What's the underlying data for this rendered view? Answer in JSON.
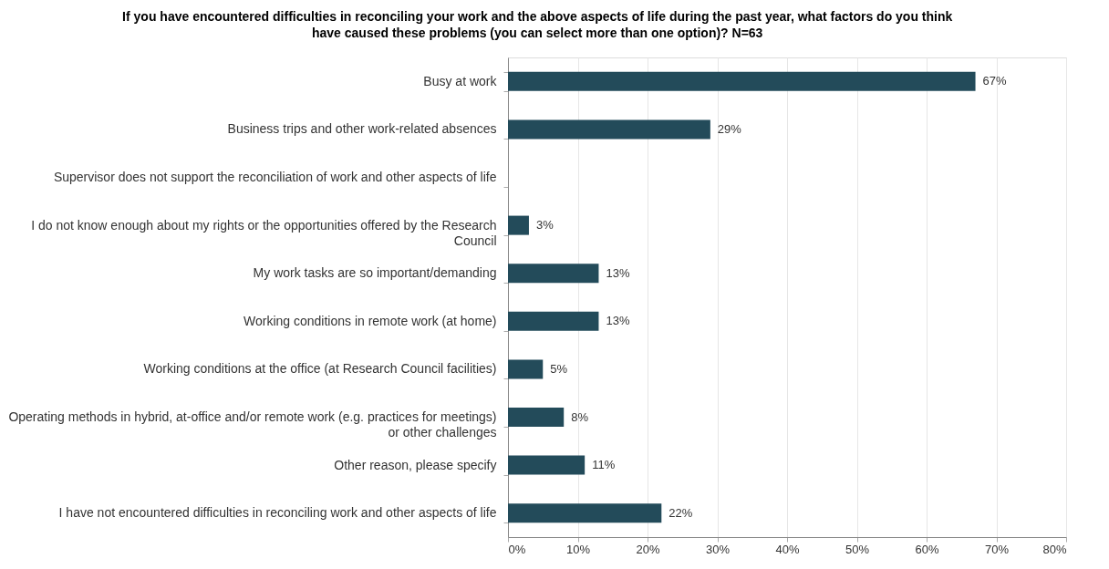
{
  "chart_data": {
    "type": "bar",
    "orientation": "horizontal",
    "title": "If you have encountered difficulties in reconciling your work and the above aspects of life during the past year, what factors do you think have caused these problems (you can select more than one option)? N=63",
    "categories": [
      "Busy at work",
      "Business trips and other work-related absences",
      "Supervisor does not support the reconciliation of work and other aspects of life",
      "I do not know enough about my rights or the opportunities offered by the Research Council",
      "My work tasks are so important/demanding",
      "Working conditions in remote work (at home)",
      "Working conditions at the office (at Research Council facilities)",
      "Operating methods in hybrid, at-office and/or remote work (e.g. practices for meetings) or other challenges",
      "Other reason, please specify",
      "I have not encountered difficulties in reconciling work and other aspects of life"
    ],
    "values": [
      67,
      29,
      null,
      3,
      13,
      13,
      5,
      8,
      11,
      22
    ],
    "value_labels": [
      "67%",
      "29%",
      null,
      "3%",
      "13%",
      "13%",
      "5%",
      "8%",
      "11%",
      "22%"
    ],
    "color": "#234b5a",
    "xlim": [
      0,
      80
    ],
    "xticks": [
      {
        "value": 0,
        "label": "0%"
      },
      {
        "value": 10,
        "label": "10%"
      },
      {
        "value": 20,
        "label": "20%"
      },
      {
        "value": 30,
        "label": "30%"
      },
      {
        "value": 40,
        "label": "40%"
      },
      {
        "value": 50,
        "label": "50%"
      },
      {
        "value": 60,
        "label": "60%"
      },
      {
        "value": 70,
        "label": "70%"
      },
      {
        "value": 80,
        "label": "80%"
      }
    ],
    "grid": "x"
  }
}
